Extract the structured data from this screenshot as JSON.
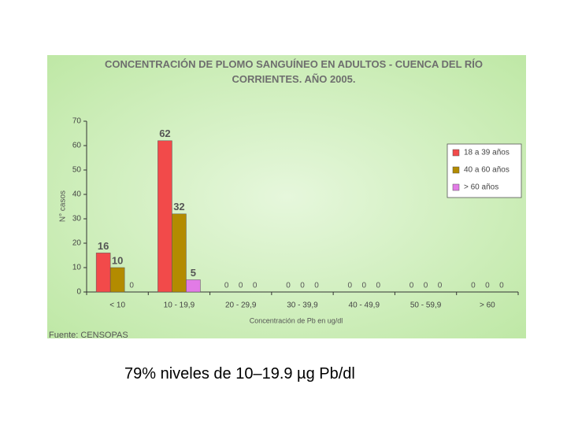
{
  "chart_data": {
    "type": "bar",
    "title": "CONCENTRACIÓN DE PLOMO SANGUÍNEO EN ADULTOS - CUENCA DEL RÍO CORRIENTES. AÑO 2005.",
    "x_label": "Concentración de Pb en ug/dl",
    "y_label": "N° casos",
    "source": "Fuente: CENSOPAS",
    "categories": [
      "< 10",
      "10 - 19,9",
      "20 - 29,9",
      "30 - 39,9",
      "40 - 49,9",
      "50 - 59,9",
      "> 60"
    ],
    "series": [
      {
        "name": "18 a 39 años",
        "color": "#f24a4a",
        "values": [
          16,
          62,
          0,
          0,
          0,
          0,
          0
        ]
      },
      {
        "name": "40 a 60 años",
        "color": "#b38b00",
        "values": [
          10,
          32,
          0,
          0,
          0,
          0,
          0
        ]
      },
      {
        "name": "> 60 años",
        "color": "#e27be6",
        "values": [
          0,
          5,
          0,
          0,
          0,
          0,
          0
        ]
      }
    ],
    "ylim": [
      0,
      70
    ],
    "yticks": [
      0,
      10,
      20,
      30,
      40,
      50,
      60,
      70
    ],
    "legend": "right"
  },
  "caption": "79% niveles de 10–19.9 µg Pb/dl"
}
